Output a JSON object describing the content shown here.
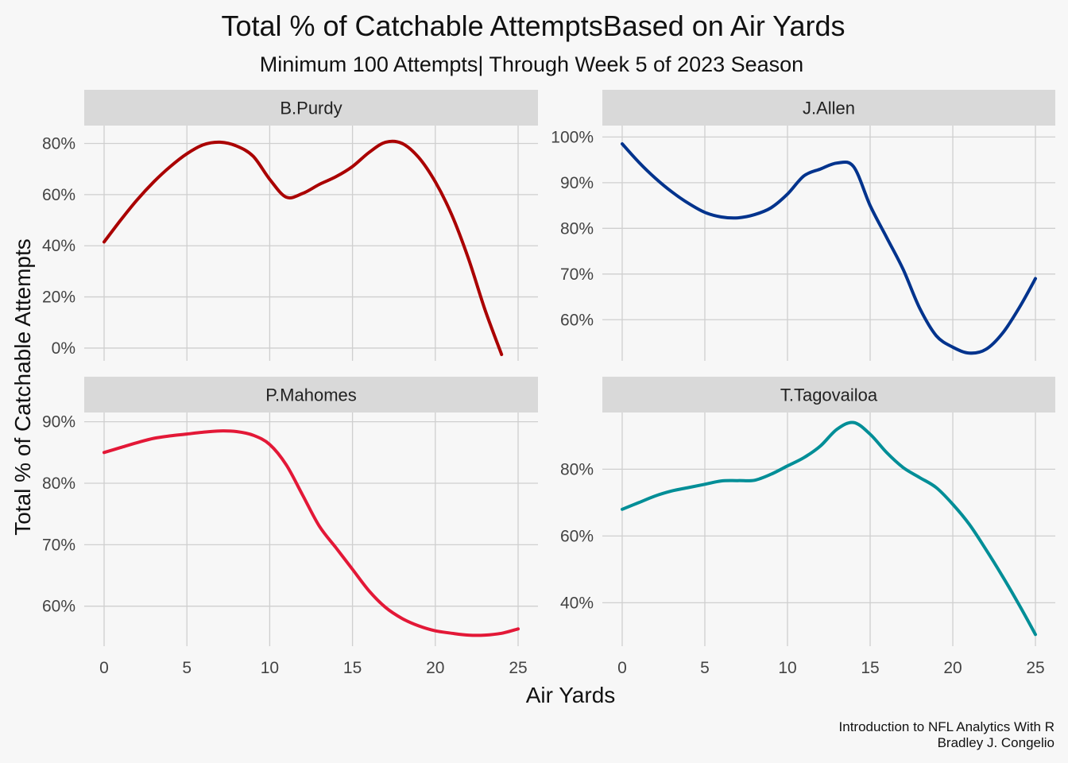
{
  "title": "Total % of Catchable AttemptsBased on Air Yards",
  "subtitle": "Minimum 100 Attempts| Through Week 5 of 2023 Season",
  "xlabel": "Air Yards",
  "ylabel": "Total % of Catchable Attempts",
  "caption": [
    "Introduction to NFL Analytics With R",
    "Bradley J. Congelio"
  ],
  "chart_data": {
    "type": "line",
    "facet_layout": "2x2",
    "grid": true,
    "x_ticks": [
      0,
      5,
      10,
      15,
      20,
      25
    ],
    "panels": [
      {
        "name": "B.Purdy",
        "color": "#aa0000",
        "xlim": [
          -1.2,
          26.2
        ],
        "ylim": [
          -5,
          87
        ],
        "y_ticks": [
          0,
          20,
          40,
          60,
          80
        ],
        "y_tick_labels": [
          "0%",
          "20%",
          "40%",
          "60%",
          "80%"
        ],
        "points": [
          [
            0,
            41.5
          ],
          [
            1,
            50
          ],
          [
            2,
            58
          ],
          [
            3,
            65
          ],
          [
            4,
            71
          ],
          [
            5,
            76
          ],
          [
            6,
            79.5
          ],
          [
            7,
            80.5
          ],
          [
            8,
            79
          ],
          [
            9,
            75
          ],
          [
            10,
            66
          ],
          [
            11,
            59
          ],
          [
            12,
            60.5
          ],
          [
            13,
            64
          ],
          [
            14,
            67
          ],
          [
            15,
            71
          ],
          [
            16,
            76.5
          ],
          [
            17,
            80.5
          ],
          [
            18,
            80
          ],
          [
            19,
            74.5
          ],
          [
            20,
            65
          ],
          [
            21,
            52
          ],
          [
            22,
            35
          ],
          [
            23,
            15
          ],
          [
            24,
            -2.5
          ]
        ]
      },
      {
        "name": "J.Allen",
        "color": "#00338d",
        "xlim": [
          -1.2,
          26.2
        ],
        "ylim": [
          51,
          102.5
        ],
        "y_ticks": [
          60,
          70,
          80,
          90,
          100
        ],
        "y_tick_labels": [
          "60%",
          "70%",
          "80%",
          "90%",
          "100%"
        ],
        "points": [
          [
            0,
            98.5
          ],
          [
            1,
            94.5
          ],
          [
            2,
            91
          ],
          [
            3,
            88
          ],
          [
            4,
            85.5
          ],
          [
            5,
            83.5
          ],
          [
            6,
            82.5
          ],
          [
            7,
            82.3
          ],
          [
            8,
            83
          ],
          [
            9,
            84.5
          ],
          [
            10,
            87.5
          ],
          [
            11,
            91.5
          ],
          [
            12,
            93
          ],
          [
            13,
            94.3
          ],
          [
            14,
            93.5
          ],
          [
            15,
            85
          ],
          [
            16,
            78
          ],
          [
            17,
            71
          ],
          [
            18,
            62.5
          ],
          [
            19,
            56.5
          ],
          [
            20,
            54
          ],
          [
            21,
            52.7
          ],
          [
            22,
            53.5
          ],
          [
            23,
            57
          ],
          [
            24,
            62.5
          ],
          [
            25,
            69
          ]
        ]
      },
      {
        "name": "P.Mahomes",
        "color": "#e31837",
        "xlim": [
          -1.2,
          26.2
        ],
        "ylim": [
          53.5,
          91.5
        ],
        "y_ticks": [
          60,
          70,
          80,
          90
        ],
        "y_tick_labels": [
          "60%",
          "70%",
          "80%",
          "90%"
        ],
        "points": [
          [
            0,
            85
          ],
          [
            1,
            85.8
          ],
          [
            2,
            86.6
          ],
          [
            3,
            87.3
          ],
          [
            4,
            87.7
          ],
          [
            5,
            88
          ],
          [
            6,
            88.3
          ],
          [
            7,
            88.5
          ],
          [
            8,
            88.4
          ],
          [
            9,
            87.8
          ],
          [
            10,
            86.3
          ],
          [
            11,
            83
          ],
          [
            12,
            78
          ],
          [
            13,
            73
          ],
          [
            14,
            69.5
          ],
          [
            15,
            66
          ],
          [
            16,
            62.5
          ],
          [
            17,
            59.8
          ],
          [
            18,
            58
          ],
          [
            19,
            56.8
          ],
          [
            20,
            56
          ],
          [
            21,
            55.6
          ],
          [
            22,
            55.3
          ],
          [
            23,
            55.3
          ],
          [
            24,
            55.6
          ],
          [
            25,
            56.3
          ]
        ]
      },
      {
        "name": "T.Tagovailoa",
        "color": "#008e97",
        "xlim": [
          -1.2,
          26.2
        ],
        "ylim": [
          27,
          97
        ],
        "y_ticks": [
          40,
          60,
          80
        ],
        "y_tick_labels": [
          "40%",
          "60%",
          "80%"
        ],
        "points": [
          [
            0,
            68
          ],
          [
            1,
            70
          ],
          [
            2,
            72
          ],
          [
            3,
            73.5
          ],
          [
            4,
            74.5
          ],
          [
            5,
            75.5
          ],
          [
            6,
            76.5
          ],
          [
            7,
            76.6
          ],
          [
            8,
            76.7
          ],
          [
            9,
            78.5
          ],
          [
            10,
            81
          ],
          [
            11,
            83.5
          ],
          [
            12,
            87
          ],
          [
            13,
            92
          ],
          [
            14,
            94
          ],
          [
            15,
            90.5
          ],
          [
            16,
            85
          ],
          [
            17,
            80.5
          ],
          [
            18,
            77.5
          ],
          [
            19,
            74.5
          ],
          [
            20,
            69.5
          ],
          [
            21,
            63.5
          ],
          [
            22,
            56
          ],
          [
            23,
            48
          ],
          [
            24,
            39.5
          ],
          [
            25,
            30.5
          ]
        ]
      }
    ]
  }
}
